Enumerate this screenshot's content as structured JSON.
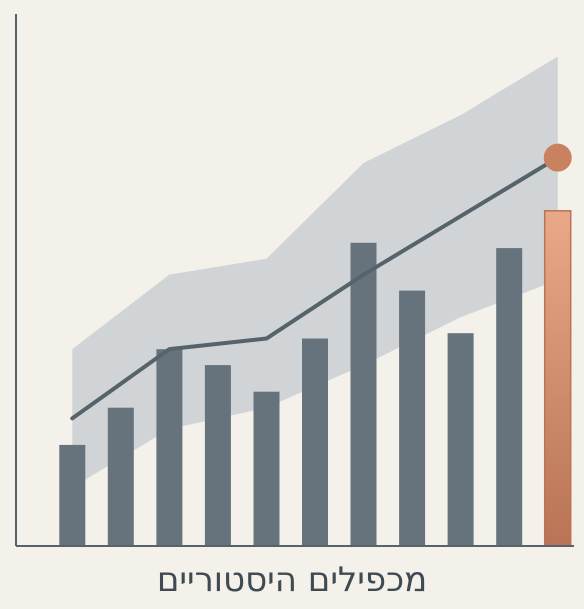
{
  "chart_data": {
    "type": "bar",
    "title": "מכפילים היסטוריים",
    "xlabel": "",
    "ylabel": "",
    "ylim": [
      0,
      100
    ],
    "grid": false,
    "legend": "none",
    "categories": [
      "",
      "",
      "",
      "",
      "",
      "",
      "",
      "",
      "",
      "",
      ""
    ],
    "series": [
      {
        "kind": "bar",
        "values": [
          19,
          26,
          37,
          34,
          29,
          39,
          57,
          48,
          40,
          56,
          63
        ],
        "highlight_index": 10
      },
      {
        "kind": "line",
        "values": [
          24,
          null,
          37,
          null,
          39,
          null,
          51,
          null,
          62,
          null,
          73
        ]
      },
      {
        "kind": "band",
        "upper": [
          37,
          null,
          51,
          null,
          54,
          null,
          72,
          null,
          81,
          null,
          92
        ],
        "lower": [
          11,
          null,
          22,
          null,
          26,
          null,
          34,
          null,
          43,
          null,
          50
        ]
      }
    ],
    "colors": {
      "bar": "#66737c",
      "highlight_top": "#e9a888",
      "highlight_bottom": "#b87455",
      "line": "#56636b",
      "band": "#c9cfd2",
      "point": "#c8825f",
      "axis": "#56636b"
    }
  }
}
